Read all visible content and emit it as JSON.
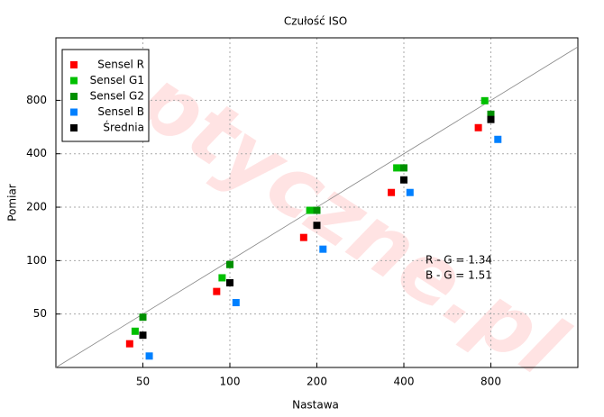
{
  "chart_data": {
    "type": "scatter",
    "title": "Czułość ISO",
    "x_label": "Nastawa",
    "y_label": "Pomiar",
    "log_x": true,
    "log_y": true,
    "grid": true,
    "legend": "upper left",
    "xlim": [
      25,
      1600
    ],
    "ylim": [
      25,
      1800
    ],
    "xticks": [
      50,
      100,
      200,
      400,
      800
    ],
    "yticks": [
      50,
      100,
      200,
      400,
      800
    ],
    "annotations": [
      "R - G = 1.34",
      "B - G = 1.51"
    ],
    "watermark": "optyczne.pl",
    "series": [
      {
        "name": "Sensel R",
        "color": "#ff0000",
        "x": [
          45,
          90,
          180,
          362,
          724
        ],
        "values": [
          34,
          67,
          135,
          242,
          561
        ]
      },
      {
        "name": "Sensel G1",
        "color": "#00c000",
        "x": [
          47,
          94,
          189,
          378,
          762
        ],
        "values": [
          40,
          80,
          192,
          333,
          796
        ]
      },
      {
        "name": "Sensel G2",
        "color": "#009000",
        "x": [
          50,
          100,
          200,
          400,
          800
        ],
        "values": [
          48,
          95,
          192,
          333,
          668
        ]
      },
      {
        "name": "Sensel B",
        "color": "#0080ff",
        "x": [
          52.6,
          105,
          210,
          420,
          846
        ],
        "values": [
          29,
          58,
          116,
          242,
          482
        ]
      },
      {
        "name": "Średnia",
        "color": "#000000",
        "x": [
          50,
          100,
          200,
          400,
          800
        ],
        "values": [
          38,
          75,
          158,
          285,
          624
        ]
      }
    ]
  }
}
